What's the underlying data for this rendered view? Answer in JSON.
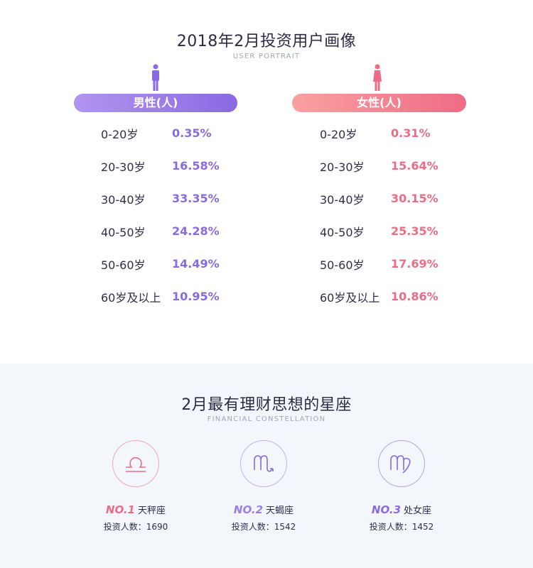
{
  "portrait": {
    "title": "2018年2月投资用户画像",
    "subtitle": "USER PORTRAIT",
    "male": {
      "label": "男性(人)",
      "color": "#8a6ae2",
      "rows": [
        {
          "age": "0-20岁",
          "pct": "0.35%"
        },
        {
          "age": "20-30岁",
          "pct": "16.58%"
        },
        {
          "age": "30-40岁",
          "pct": "33.35%"
        },
        {
          "age": "40-50岁",
          "pct": "24.28%"
        },
        {
          "age": "50-60岁",
          "pct": "14.49%"
        },
        {
          "age": "60岁及以上",
          "pct": "10.95%"
        }
      ]
    },
    "female": {
      "label": "女性(人)",
      "color": "#ec6c86",
      "rows": [
        {
          "age": "0-20岁",
          "pct": "0.31%"
        },
        {
          "age": "20-30岁",
          "pct": "15.64%"
        },
        {
          "age": "30-40岁",
          "pct": "30.15%"
        },
        {
          "age": "40-50岁",
          "pct": "25.35%"
        },
        {
          "age": "50-60岁",
          "pct": "17.69%"
        },
        {
          "age": "60岁及以上",
          "pct": "10.86%"
        }
      ]
    }
  },
  "constellation": {
    "title": "2月最有理财思想的星座",
    "subtitle": "FINANCIAL CONSTELLATION",
    "items": [
      {
        "rank": "NO.1",
        "name": "天秤座",
        "investors": "投资人数：1690",
        "icon": "libra-icon",
        "color": "#ec6c86"
      },
      {
        "rank": "NO.2",
        "name": "天蝎座",
        "investors": "投资人数：1542",
        "icon": "scorpio-icon",
        "color": "#9b7ee6"
      },
      {
        "rank": "NO.3",
        "name": "处女座",
        "investors": "投资人数：1452",
        "icon": "virgo-icon",
        "color": "#8a6ae2"
      }
    ]
  }
}
